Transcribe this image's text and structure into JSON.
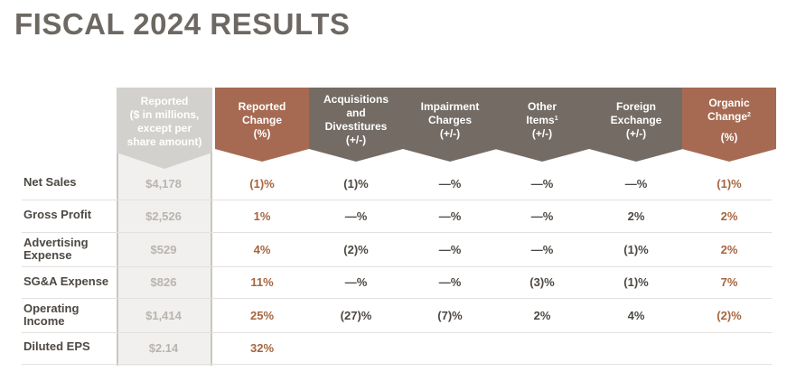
{
  "title": "FISCAL 2024 RESULTS",
  "headers": {
    "reported": [
      "Reported",
      "($ in millions,",
      "except per",
      "share amount)"
    ],
    "reported_change": [
      "Reported",
      "Change",
      "(%)"
    ],
    "acquisitions": [
      "Acquisitions",
      "and",
      "Divestitures",
      "(+/-)"
    ],
    "impairment": [
      "Impairment",
      "Charges",
      "(+/-)"
    ],
    "other_items": {
      "l1": "Other",
      "l2": "Items",
      "sup": "1",
      "l3": "(+/-)"
    },
    "foreign_exchange": [
      "Foreign",
      "Exchange",
      "(+/-)"
    ],
    "organic": {
      "l1": "Organic",
      "l2": "Change",
      "sup": "2",
      "l3": "(%)"
    }
  },
  "rows": [
    {
      "label": [
        "Net Sales"
      ],
      "reported": "$4,178",
      "reported_change": "(1)%",
      "acquisitions": "(1)%",
      "impairment": "—%",
      "other_items": "—%",
      "foreign_exchange": "—%",
      "organic": "(1)%"
    },
    {
      "label": [
        "Gross Profit"
      ],
      "reported": "$2,526",
      "reported_change": "1%",
      "acquisitions": "—%",
      "impairment": "—%",
      "other_items": "—%",
      "foreign_exchange": "2%",
      "organic": "2%"
    },
    {
      "label": [
        "Advertising",
        "Expense"
      ],
      "reported": "$529",
      "reported_change": "4%",
      "acquisitions": "(2)%",
      "impairment": "—%",
      "other_items": "—%",
      "foreign_exchange": "(1)%",
      "organic": "2%"
    },
    {
      "label": [
        "SG&A Expense"
      ],
      "reported": "$826",
      "reported_change": "11%",
      "acquisitions": "—%",
      "impairment": "—%",
      "other_items": "(3)%",
      "foreign_exchange": "(1)%",
      "organic": "7%"
    },
    {
      "label": [
        "Operating",
        "Income"
      ],
      "reported": "$1,414",
      "reported_change": "25%",
      "acquisitions": "(27)%",
      "impairment": "(7)%",
      "other_items": "2%",
      "foreign_exchange": "4%",
      "organic": "(2)%"
    },
    {
      "label": [
        "Diluted EPS"
      ],
      "reported": "$2.14",
      "reported_change": "32%",
      "acquisitions": "",
      "impairment": "",
      "other_items": "",
      "foreign_exchange": "",
      "organic": ""
    }
  ],
  "colors": {
    "gray": "#736b64",
    "rust": "#a66a52",
    "light": "#d3d1ce",
    "highlight": "#a6653f"
  }
}
